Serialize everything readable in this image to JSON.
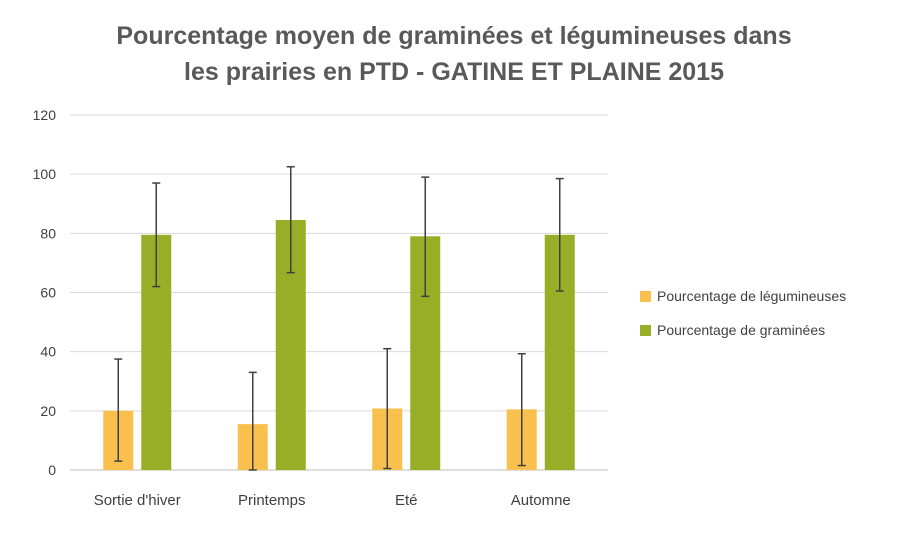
{
  "chart_data": {
    "type": "bar",
    "title_lines": [
      "Pourcentage moyen de graminées et légumineuses dans",
      "les prairies en PTD - GATINE ET PLAINE 2015"
    ],
    "categories": [
      "Sortie d'hiver",
      "Printemps",
      "Eté",
      "Automne"
    ],
    "ylim": [
      0,
      120
    ],
    "yticks": [
      0,
      20,
      40,
      60,
      80,
      100,
      120
    ],
    "grid": true,
    "legend_position": "right",
    "series": [
      {
        "name": "Pourcentage de légumineuses",
        "color": "#F9C04D",
        "values": [
          20,
          15.5,
          20.8,
          20.5
        ],
        "error_low": [
          3,
          0,
          0.5,
          1.5
        ],
        "error_high": [
          37.5,
          33,
          41,
          39.3
        ]
      },
      {
        "name": "Pourcentage de graminées",
        "color": "#97AE26",
        "values": [
          79.5,
          84.5,
          79,
          79.5
        ],
        "error_low": [
          62,
          66.7,
          58.7,
          60.5
        ],
        "error_high": [
          97,
          102.5,
          99,
          98.5
        ]
      }
    ]
  }
}
